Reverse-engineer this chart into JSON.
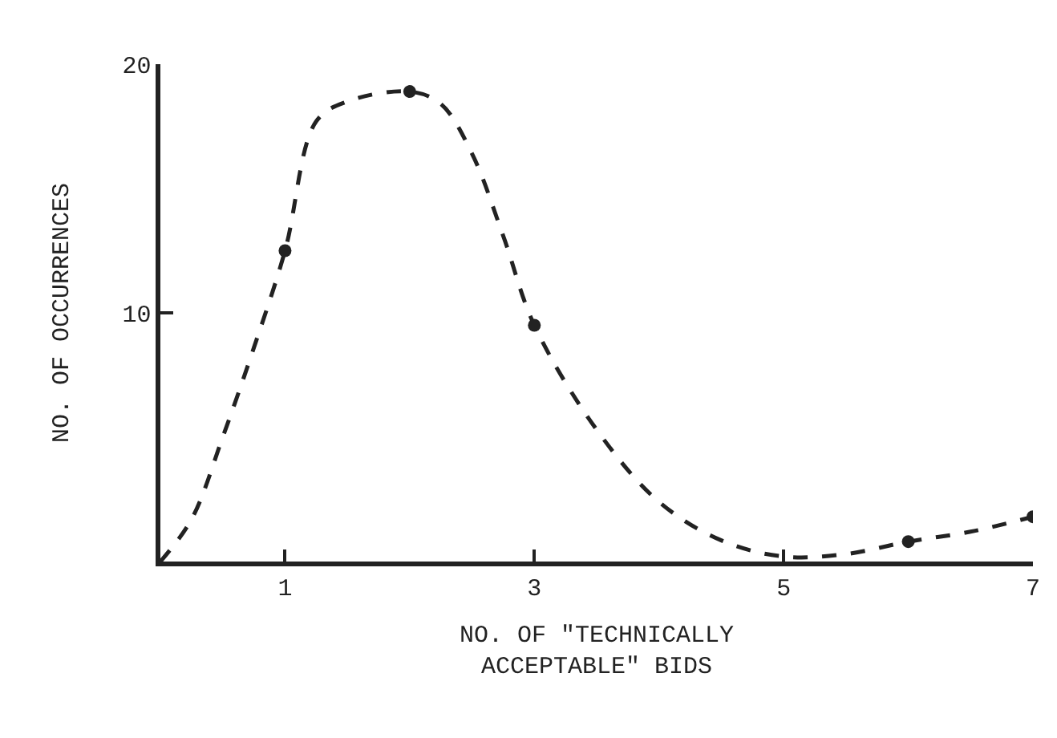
{
  "chart_data": {
    "type": "line",
    "xlabel": "NO. OF \"TECHNICALLY\nACCEPTABLE\" BIDS",
    "ylabel": "NO. OF OCCURRENCES",
    "xlim": [
      0,
      7
    ],
    "ylim": [
      0,
      20
    ],
    "xticks": [
      1,
      3,
      5,
      7
    ],
    "yticks": [
      10,
      20
    ],
    "series": [
      {
        "color": "#222222",
        "line_style": "dashed",
        "marker": "none",
        "x": [
          0,
          0.25,
          0.5,
          0.75,
          1,
          1.25,
          1.5,
          2,
          2.25,
          2.5,
          2.75,
          3,
          3.5,
          4,
          4.5,
          5,
          5.5,
          6,
          6.5,
          7
        ],
        "values": [
          0,
          1.7,
          5,
          8.6,
          12.5,
          17.7,
          18.5,
          18.9,
          18.4,
          16.4,
          13.1,
          9.5,
          5.3,
          2.4,
          0.85,
          0.2,
          0.3,
          0.8,
          1.2,
          1.8
        ]
      },
      {
        "type": "scatter",
        "color": "#222222",
        "marker": "circle",
        "x": [
          1,
          2,
          3,
          6,
          7
        ],
        "values": [
          12.5,
          18.9,
          9.5,
          0.8,
          1.8
        ]
      }
    ]
  }
}
